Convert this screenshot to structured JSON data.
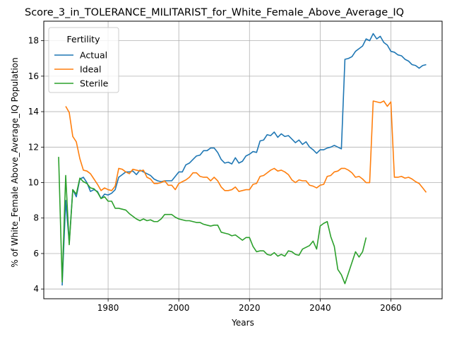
{
  "chart_data": {
    "type": "line",
    "title": "Score_3_in_TOLERANCE_MILITARIST_for_White_Female_Above_Average_IQ",
    "xlabel": "Years",
    "ylabel": "% of White_Female Above_Average_IQ Population",
    "xlim": [
      1961.8,
      2074.5
    ],
    "ylim": [
      3.45,
      19.1
    ],
    "xticks": [
      1980,
      2000,
      2020,
      2040,
      2060
    ],
    "yticks": [
      4,
      6,
      8,
      10,
      12,
      14,
      16,
      18
    ],
    "grid": true,
    "legend": {
      "title": "Fertility",
      "placement": "top-left"
    },
    "series": [
      {
        "name": "Actual",
        "color": "#1f77b4",
        "points": [
          [
            1967,
            4.2
          ],
          [
            1968,
            9.0
          ],
          [
            1969,
            6.6
          ],
          [
            1970,
            9.6
          ],
          [
            1971,
            9.2
          ],
          [
            1972,
            10.2
          ],
          [
            1973,
            10.3
          ],
          [
            1974,
            10.0
          ],
          [
            1975,
            9.5
          ],
          [
            1976,
            9.6
          ],
          [
            1977,
            9.5
          ],
          [
            1978,
            9.1
          ],
          [
            1979,
            9.35
          ],
          [
            1980,
            9.3
          ],
          [
            1981,
            9.4
          ],
          [
            1982,
            9.6
          ],
          [
            1983,
            10.3
          ],
          [
            1984,
            10.45
          ],
          [
            1985,
            10.6
          ],
          [
            1986,
            10.6
          ],
          [
            1987,
            10.65
          ],
          [
            1988,
            10.45
          ],
          [
            1989,
            10.7
          ],
          [
            1990,
            10.6
          ],
          [
            1991,
            10.5
          ],
          [
            1992,
            10.4
          ],
          [
            1993,
            10.2
          ],
          [
            1994,
            10.1
          ],
          [
            1995,
            10.05
          ],
          [
            1996,
            10.1
          ],
          [
            1997,
            10.1
          ],
          [
            1998,
            10.1
          ],
          [
            1999,
            10.35
          ],
          [
            2000,
            10.6
          ],
          [
            2001,
            10.6
          ],
          [
            2002,
            11.0
          ],
          [
            2003,
            11.1
          ],
          [
            2004,
            11.3
          ],
          [
            2005,
            11.5
          ],
          [
            2006,
            11.55
          ],
          [
            2007,
            11.8
          ],
          [
            2008,
            11.8
          ],
          [
            2009,
            11.95
          ],
          [
            2010,
            11.95
          ],
          [
            2011,
            11.7
          ],
          [
            2012,
            11.3
          ],
          [
            2013,
            11.1
          ],
          [
            2014,
            11.15
          ],
          [
            2015,
            11.05
          ],
          [
            2016,
            11.4
          ],
          [
            2017,
            11.1
          ],
          [
            2018,
            11.2
          ],
          [
            2019,
            11.5
          ],
          [
            2020,
            11.6
          ],
          [
            2021,
            11.75
          ],
          [
            2022,
            11.7
          ],
          [
            2023,
            12.35
          ],
          [
            2024,
            12.4
          ],
          [
            2025,
            12.7
          ],
          [
            2026,
            12.65
          ],
          [
            2027,
            12.85
          ],
          [
            2028,
            12.55
          ],
          [
            2029,
            12.75
          ],
          [
            2030,
            12.6
          ],
          [
            2031,
            12.65
          ],
          [
            2032,
            12.45
          ],
          [
            2033,
            12.25
          ],
          [
            2034,
            12.4
          ],
          [
            2035,
            12.15
          ],
          [
            2036,
            12.3
          ],
          [
            2037,
            12.0
          ],
          [
            2038,
            11.85
          ],
          [
            2039,
            11.65
          ],
          [
            2040,
            11.85
          ],
          [
            2041,
            11.85
          ],
          [
            2042,
            11.95
          ],
          [
            2043,
            12.0
          ],
          [
            2044,
            12.1
          ],
          [
            2045,
            12.0
          ],
          [
            2046,
            11.9
          ],
          [
            2047,
            16.95
          ],
          [
            2048,
            17.0
          ],
          [
            2049,
            17.1
          ],
          [
            2050,
            17.4
          ],
          [
            2051,
            17.55
          ],
          [
            2052,
            17.7
          ],
          [
            2053,
            18.1
          ],
          [
            2054,
            18.0
          ],
          [
            2055,
            18.4
          ],
          [
            2056,
            18.1
          ],
          [
            2057,
            18.25
          ],
          [
            2058,
            17.9
          ],
          [
            2059,
            17.75
          ],
          [
            2060,
            17.4
          ],
          [
            2061,
            17.35
          ],
          [
            2062,
            17.2
          ],
          [
            2063,
            17.15
          ],
          [
            2064,
            16.95
          ],
          [
            2065,
            16.85
          ],
          [
            2066,
            16.65
          ],
          [
            2067,
            16.6
          ],
          [
            2068,
            16.45
          ],
          [
            2069,
            16.6
          ],
          [
            2070,
            16.65
          ]
        ]
      },
      {
        "name": "Ideal",
        "color": "#ff7f0e",
        "points": [
          [
            1968,
            14.3
          ],
          [
            1969,
            13.95
          ],
          [
            1970,
            12.6
          ],
          [
            1971,
            12.3
          ],
          [
            1972,
            11.35
          ],
          [
            1973,
            10.7
          ],
          [
            1974,
            10.65
          ],
          [
            1975,
            10.5
          ],
          [
            1976,
            10.2
          ],
          [
            1977,
            9.9
          ],
          [
            1978,
            9.55
          ],
          [
            1979,
            9.7
          ],
          [
            1980,
            9.6
          ],
          [
            1981,
            9.55
          ],
          [
            1982,
            9.8
          ],
          [
            1983,
            10.8
          ],
          [
            1984,
            10.75
          ],
          [
            1985,
            10.6
          ],
          [
            1986,
            10.5
          ],
          [
            1987,
            10.75
          ],
          [
            1988,
            10.7
          ],
          [
            1989,
            10.65
          ],
          [
            1990,
            10.7
          ],
          [
            1991,
            10.3
          ],
          [
            1992,
            10.2
          ],
          [
            1993,
            9.95
          ],
          [
            1994,
            9.95
          ],
          [
            1995,
            10.0
          ],
          [
            1996,
            10.1
          ],
          [
            1997,
            9.85
          ],
          [
            1998,
            9.85
          ],
          [
            1999,
            9.6
          ],
          [
            2000,
            9.95
          ],
          [
            2001,
            10.05
          ],
          [
            2002,
            10.15
          ],
          [
            2003,
            10.3
          ],
          [
            2004,
            10.55
          ],
          [
            2005,
            10.55
          ],
          [
            2006,
            10.35
          ],
          [
            2007,
            10.3
          ],
          [
            2008,
            10.3
          ],
          [
            2009,
            10.1
          ],
          [
            2010,
            10.3
          ],
          [
            2011,
            10.1
          ],
          [
            2012,
            9.75
          ],
          [
            2013,
            9.55
          ],
          [
            2014,
            9.55
          ],
          [
            2015,
            9.6
          ],
          [
            2016,
            9.75
          ],
          [
            2017,
            9.5
          ],
          [
            2018,
            9.55
          ],
          [
            2019,
            9.6
          ],
          [
            2020,
            9.6
          ],
          [
            2021,
            9.9
          ],
          [
            2022,
            9.95
          ],
          [
            2023,
            10.35
          ],
          [
            2024,
            10.4
          ],
          [
            2025,
            10.55
          ],
          [
            2026,
            10.7
          ],
          [
            2027,
            10.8
          ],
          [
            2028,
            10.65
          ],
          [
            2029,
            10.7
          ],
          [
            2030,
            10.6
          ],
          [
            2031,
            10.45
          ],
          [
            2032,
            10.15
          ],
          [
            2033,
            10.0
          ],
          [
            2034,
            10.15
          ],
          [
            2035,
            10.1
          ],
          [
            2036,
            10.1
          ],
          [
            2037,
            9.85
          ],
          [
            2038,
            9.8
          ],
          [
            2039,
            9.7
          ],
          [
            2040,
            9.85
          ],
          [
            2041,
            9.9
          ],
          [
            2042,
            10.35
          ],
          [
            2043,
            10.4
          ],
          [
            2044,
            10.6
          ],
          [
            2045,
            10.65
          ],
          [
            2046,
            10.8
          ],
          [
            2047,
            10.8
          ],
          [
            2048,
            10.7
          ],
          [
            2049,
            10.55
          ],
          [
            2050,
            10.3
          ],
          [
            2051,
            10.35
          ],
          [
            2052,
            10.2
          ],
          [
            2053,
            10.0
          ],
          [
            2054,
            10.0
          ],
          [
            2055,
            14.6
          ],
          [
            2056,
            14.55
          ],
          [
            2057,
            14.5
          ],
          [
            2058,
            14.6
          ],
          [
            2059,
            14.3
          ],
          [
            2060,
            14.55
          ],
          [
            2061,
            10.3
          ],
          [
            2062,
            10.3
          ],
          [
            2063,
            10.35
          ],
          [
            2064,
            10.25
          ],
          [
            2065,
            10.3
          ],
          [
            2066,
            10.2
          ],
          [
            2067,
            10.05
          ],
          [
            2068,
            9.95
          ],
          [
            2069,
            9.7
          ],
          [
            2070,
            9.45
          ]
        ]
      },
      {
        "name": "Sterile",
        "color": "#2ca02c",
        "points": [
          [
            1966,
            11.45
          ],
          [
            1967,
            4.4
          ],
          [
            1968,
            10.4
          ],
          [
            1969,
            6.5
          ],
          [
            1970,
            9.6
          ],
          [
            1971,
            9.35
          ],
          [
            1972,
            10.25
          ],
          [
            1973,
            10.05
          ],
          [
            1974,
            9.95
          ],
          [
            1975,
            9.7
          ],
          [
            1976,
            9.65
          ],
          [
            1977,
            9.45
          ],
          [
            1978,
            9.1
          ],
          [
            1979,
            9.2
          ],
          [
            1980,
            8.95
          ],
          [
            1981,
            8.95
          ],
          [
            1982,
            8.55
          ],
          [
            1983,
            8.55
          ],
          [
            1984,
            8.5
          ],
          [
            1985,
            8.45
          ],
          [
            1986,
            8.25
          ],
          [
            1987,
            8.1
          ],
          [
            1988,
            7.95
          ],
          [
            1989,
            7.85
          ],
          [
            1990,
            7.95
          ],
          [
            1991,
            7.85
          ],
          [
            1992,
            7.9
          ],
          [
            1993,
            7.8
          ],
          [
            1994,
            7.8
          ],
          [
            1995,
            7.95
          ],
          [
            1996,
            8.2
          ],
          [
            1997,
            8.2
          ],
          [
            1998,
            8.2
          ],
          [
            1999,
            8.05
          ],
          [
            2000,
            7.95
          ],
          [
            2001,
            7.9
          ],
          [
            2002,
            7.85
          ],
          [
            2003,
            7.85
          ],
          [
            2004,
            7.8
          ],
          [
            2005,
            7.75
          ],
          [
            2006,
            7.75
          ],
          [
            2007,
            7.65
          ],
          [
            2008,
            7.6
          ],
          [
            2009,
            7.55
          ],
          [
            2010,
            7.6
          ],
          [
            2011,
            7.6
          ],
          [
            2012,
            7.2
          ],
          [
            2013,
            7.15
          ],
          [
            2014,
            7.1
          ],
          [
            2015,
            7.0
          ],
          [
            2016,
            7.05
          ],
          [
            2017,
            6.9
          ],
          [
            2018,
            6.75
          ],
          [
            2019,
            6.9
          ],
          [
            2020,
            6.9
          ],
          [
            2021,
            6.4
          ],
          [
            2022,
            6.1
          ],
          [
            2023,
            6.15
          ],
          [
            2024,
            6.15
          ],
          [
            2025,
            5.95
          ],
          [
            2026,
            5.9
          ],
          [
            2027,
            6.05
          ],
          [
            2028,
            5.85
          ],
          [
            2029,
            5.95
          ],
          [
            2030,
            5.85
          ],
          [
            2031,
            6.15
          ],
          [
            2032,
            6.1
          ],
          [
            2033,
            5.95
          ],
          [
            2034,
            5.9
          ],
          [
            2035,
            6.25
          ],
          [
            2036,
            6.35
          ],
          [
            2037,
            6.45
          ],
          [
            2038,
            6.7
          ],
          [
            2039,
            6.25
          ],
          [
            2040,
            7.55
          ],
          [
            2041,
            7.7
          ],
          [
            2042,
            7.8
          ],
          [
            2043,
            6.95
          ],
          [
            2044,
            6.4
          ],
          [
            2045,
            5.1
          ],
          [
            2046,
            4.8
          ],
          [
            2047,
            4.3
          ],
          [
            2048,
            4.9
          ],
          [
            2049,
            5.5
          ],
          [
            2050,
            6.1
          ],
          [
            2051,
            5.8
          ],
          [
            2052,
            6.1
          ],
          [
            2053,
            6.9
          ]
        ]
      }
    ]
  }
}
